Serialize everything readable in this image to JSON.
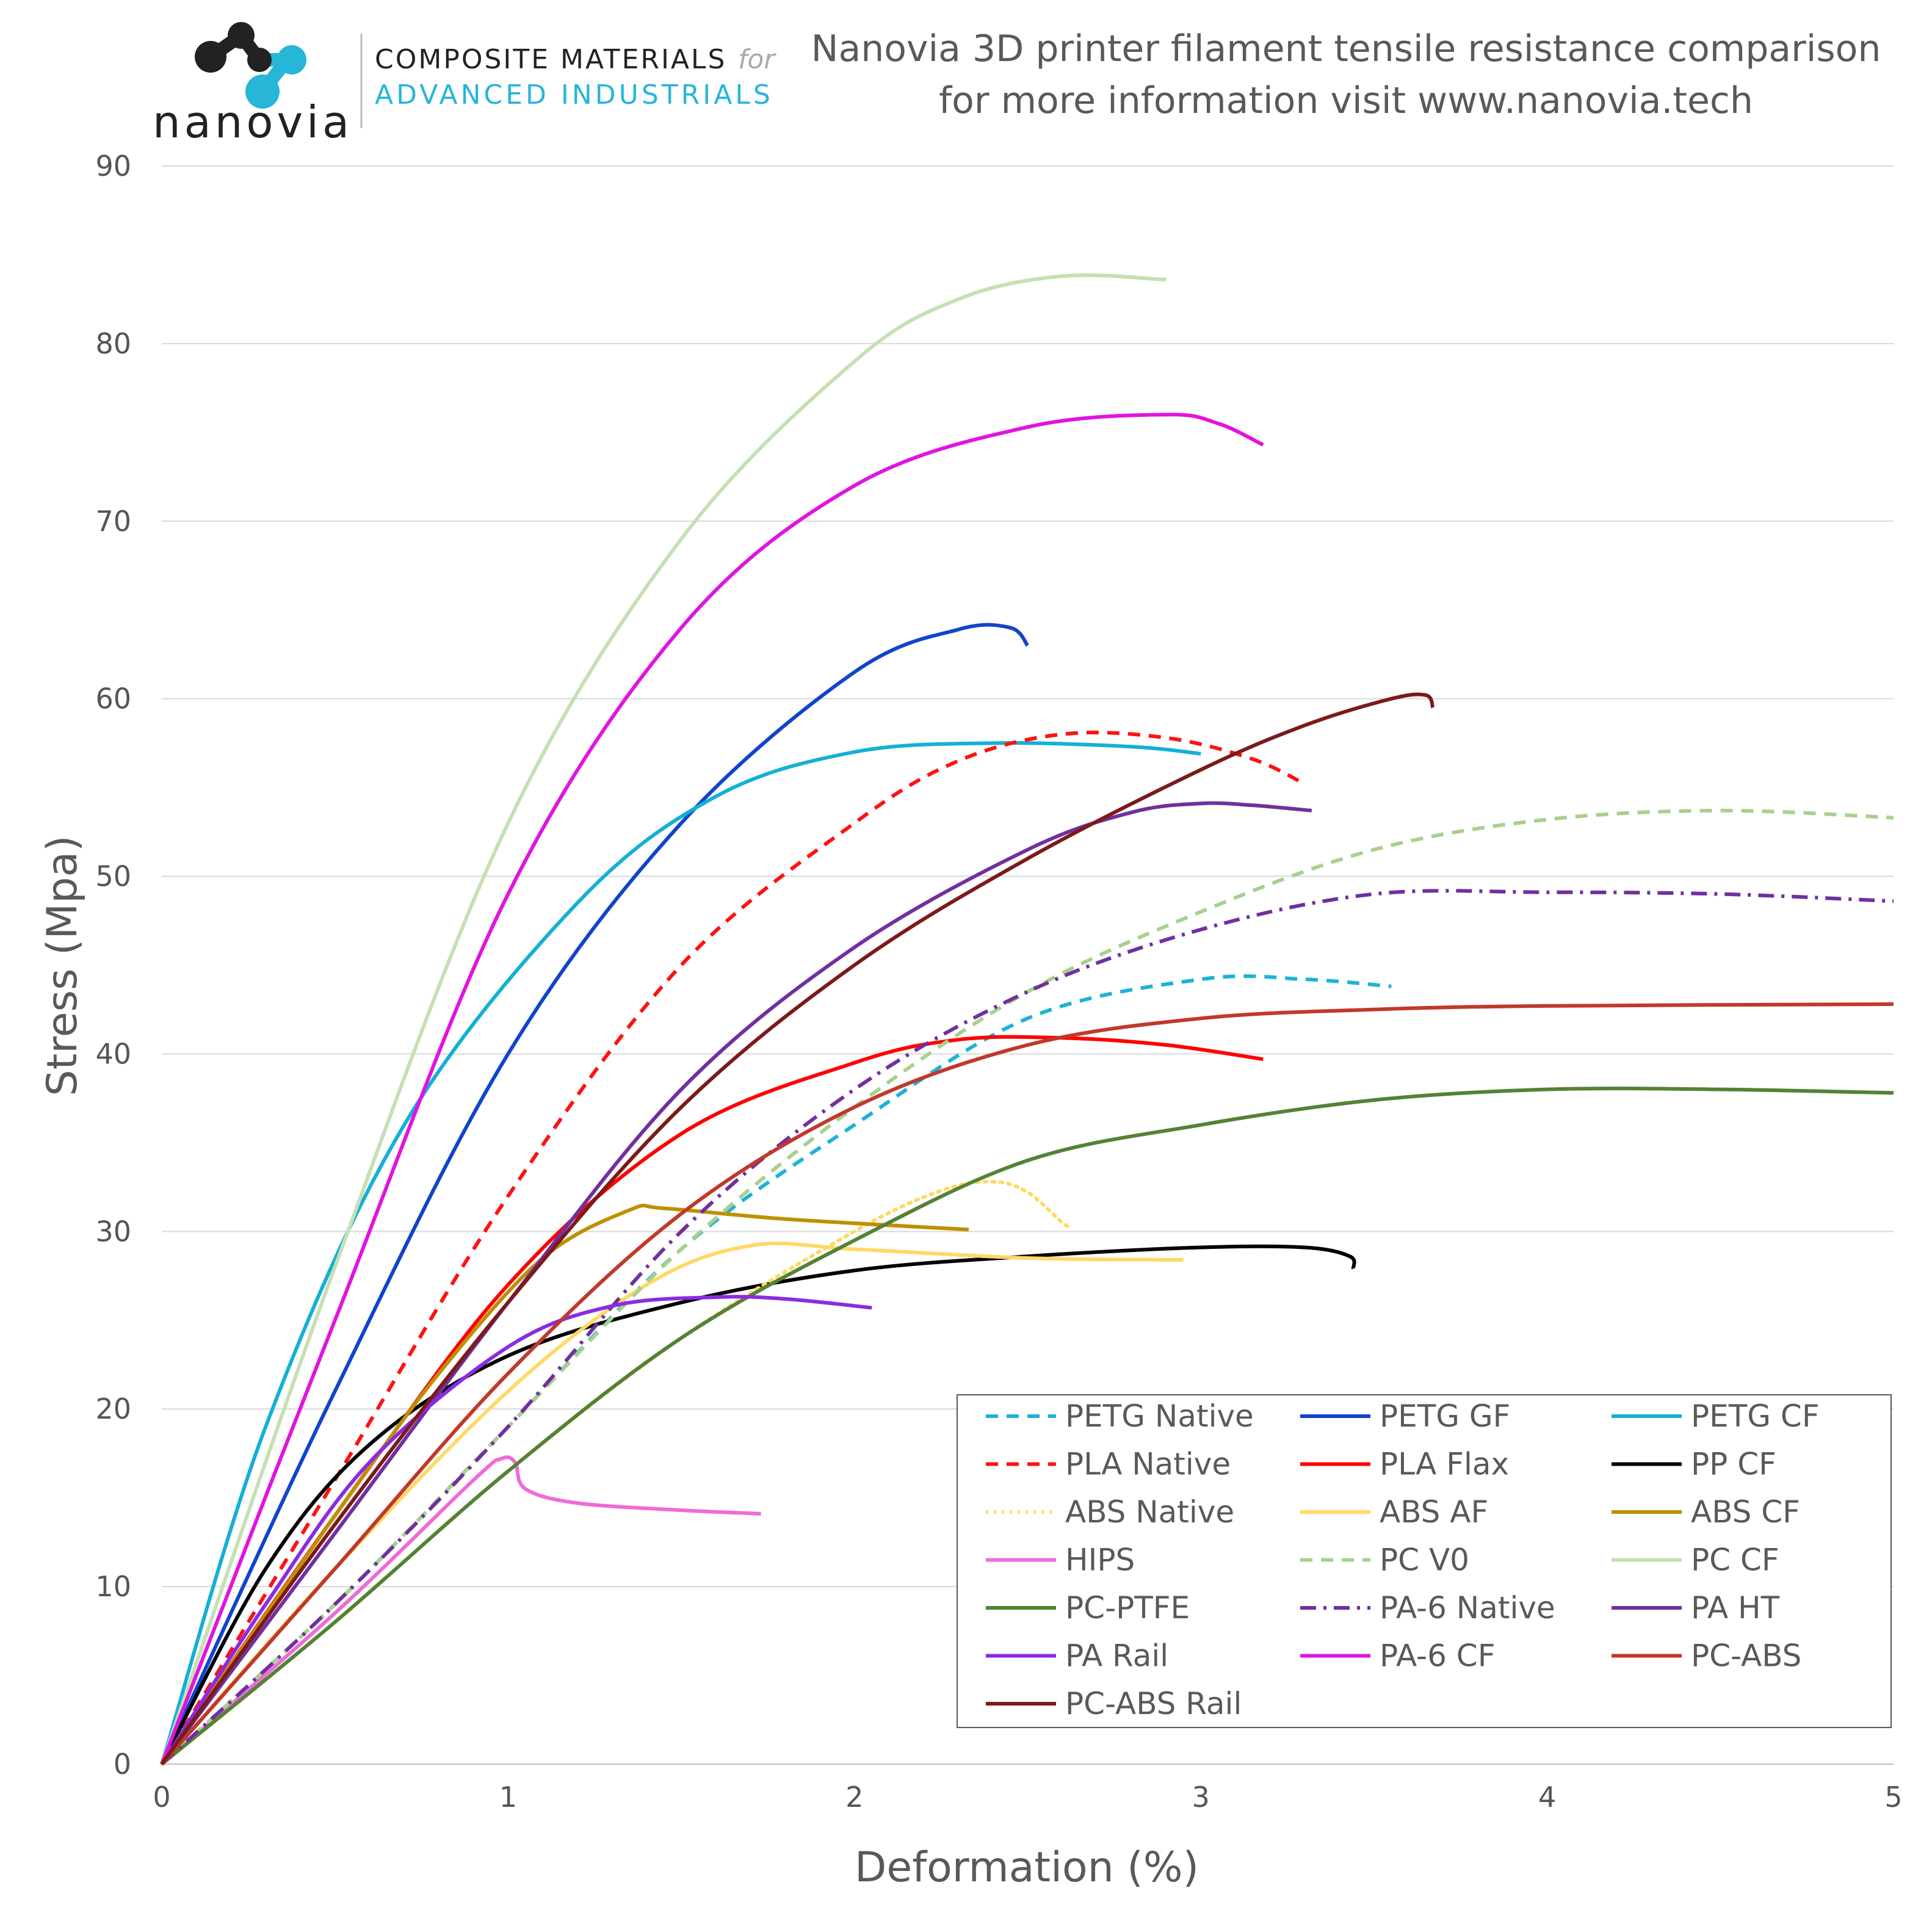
{
  "brand": {
    "name": "nanovia",
    "tagline_line1": "COMPOSITE MATERIALS",
    "tagline_for": "for",
    "tagline_line2": "ADVANCED INDUSTRIALS",
    "accent_color": "#27b5d8",
    "dark_color": "#222222"
  },
  "chart_data": {
    "type": "line",
    "title": "Nanovia 3D printer filament  tensile resistance comparison",
    "subtitle": "for more information visit www.nanovia.tech",
    "xlabel": "Deformation (%)",
    "ylabel": "Stress  (Mpa)",
    "xlim": [
      0,
      5
    ],
    "ylim": [
      0,
      90
    ],
    "xticks": [
      0,
      1,
      2,
      3,
      4,
      5
    ],
    "yticks": [
      0,
      10,
      20,
      30,
      40,
      50,
      60,
      70,
      80,
      90
    ],
    "grid": "horizontal",
    "legend_position": "bottom-right",
    "series": [
      {
        "name": "PETG Native",
        "color": "#1fb2d6",
        "dash": "dashed",
        "points": [
          [
            0,
            0
          ],
          [
            0.5,
            9
          ],
          [
            1,
            19
          ],
          [
            1.5,
            29
          ],
          [
            2,
            36
          ],
          [
            2.5,
            42
          ],
          [
            3,
            44.2
          ],
          [
            3.3,
            44.2
          ],
          [
            3.55,
            43.8
          ]
        ]
      },
      {
        "name": "PETG GF",
        "color": "#1144cc",
        "dash": "solid",
        "points": [
          [
            0,
            0
          ],
          [
            0.5,
            21
          ],
          [
            1,
            40
          ],
          [
            1.5,
            53
          ],
          [
            2,
            61.5
          ],
          [
            2.3,
            63.9
          ],
          [
            2.45,
            64
          ],
          [
            2.5,
            63
          ]
        ]
      },
      {
        "name": "PETG CF",
        "color": "#14b0d6",
        "dash": "solid",
        "points": [
          [
            0,
            0
          ],
          [
            0.3,
            19
          ],
          [
            0.7,
            36
          ],
          [
            1.2,
            48.5
          ],
          [
            1.6,
            54.5
          ],
          [
            2,
            57
          ],
          [
            2.4,
            57.5
          ],
          [
            2.8,
            57.3
          ],
          [
            3,
            56.9
          ]
        ]
      },
      {
        "name": "PLA Native",
        "color": "#ff1111",
        "dash": "dashed",
        "points": [
          [
            0,
            0
          ],
          [
            0.5,
            16
          ],
          [
            1,
            32
          ],
          [
            1.5,
            45
          ],
          [
            2,
            53
          ],
          [
            2.3,
            56.5
          ],
          [
            2.6,
            58
          ],
          [
            2.9,
            57.8
          ],
          [
            3.15,
            56.6
          ],
          [
            3.3,
            55.2
          ]
        ]
      },
      {
        "name": "PLA Flax",
        "color": "#ff0000",
        "dash": "solid",
        "points": [
          [
            0,
            0
          ],
          [
            0.5,
            14
          ],
          [
            1,
            27
          ],
          [
            1.5,
            35.5
          ],
          [
            2,
            39.5
          ],
          [
            2.3,
            40.8
          ],
          [
            2.6,
            40.9
          ],
          [
            2.9,
            40.5
          ],
          [
            3.18,
            39.7
          ]
        ]
      },
      {
        "name": "PP CF",
        "color": "#000000",
        "dash": "solid",
        "points": [
          [
            0,
            0
          ],
          [
            0.3,
            11
          ],
          [
            0.6,
            18
          ],
          [
            1,
            23
          ],
          [
            1.5,
            26
          ],
          [
            2,
            27.8
          ],
          [
            2.5,
            28.6
          ],
          [
            3,
            29.1
          ],
          [
            3.3,
            29.1
          ],
          [
            3.43,
            28.6
          ],
          [
            3.44,
            27.9
          ]
        ]
      },
      {
        "name": "ABS Native",
        "color": "#ffd966",
        "dash": "dotted",
        "points": [
          [
            0,
            0
          ],
          [
            0.5,
            8
          ],
          [
            1,
            16.5
          ],
          [
            1.5,
            24
          ],
          [
            2,
            30
          ],
          [
            2.25,
            32.3
          ],
          [
            2.4,
            32.8
          ],
          [
            2.5,
            32.2
          ],
          [
            2.6,
            30.5
          ],
          [
            2.62,
            30.3
          ]
        ]
      },
      {
        "name": "ABS AF",
        "color": "#ffd966",
        "dash": "solid",
        "points": [
          [
            0,
            0
          ],
          [
            0.5,
            11
          ],
          [
            1,
            21
          ],
          [
            1.4,
            27
          ],
          [
            1.7,
            29.2
          ],
          [
            2,
            29
          ],
          [
            2.5,
            28.5
          ],
          [
            2.95,
            28.4
          ]
        ]
      },
      {
        "name": "ABS CF",
        "color": "#bf8f00",
        "dash": "solid",
        "points": [
          [
            0,
            0
          ],
          [
            0.5,
            14
          ],
          [
            0.8,
            22
          ],
          [
            1.1,
            28.5
          ],
          [
            1.35,
            31.2
          ],
          [
            1.45,
            31.3
          ],
          [
            1.8,
            30.7
          ],
          [
            2.33,
            30.1
          ]
        ]
      },
      {
        "name": "HIPS",
        "color": "#f06ad8",
        "dash": "solid",
        "points": [
          [
            0,
            0
          ],
          [
            0.5,
            8.5
          ],
          [
            0.9,
            16
          ],
          [
            0.98,
            17.2
          ],
          [
            1.02,
            17
          ],
          [
            1.05,
            15.5
          ],
          [
            1.2,
            14.7
          ],
          [
            1.5,
            14.3
          ],
          [
            1.73,
            14.1
          ]
        ]
      },
      {
        "name": "PC V0",
        "color": "#a8d08d",
        "dash": "dashed",
        "points": [
          [
            0,
            0
          ],
          [
            0.5,
            9
          ],
          [
            1,
            19
          ],
          [
            1.5,
            29
          ],
          [
            2,
            37
          ],
          [
            2.5,
            43.5
          ],
          [
            3,
            48
          ],
          [
            3.5,
            51.5
          ],
          [
            4,
            53.2
          ],
          [
            4.5,
            53.7
          ],
          [
            5,
            53.3
          ]
        ]
      },
      {
        "name": "PC CF",
        "color": "#c5e0b4",
        "dash": "solid",
        "points": [
          [
            0,
            0
          ],
          [
            0.5,
            28
          ],
          [
            1,
            53
          ],
          [
            1.5,
            69
          ],
          [
            2,
            79
          ],
          [
            2.3,
            82.5
          ],
          [
            2.6,
            83.8
          ],
          [
            2.9,
            83.6
          ]
        ]
      },
      {
        "name": "PC-PTFE",
        "color": "#548235",
        "dash": "solid",
        "points": [
          [
            0,
            0
          ],
          [
            0.5,
            8
          ],
          [
            1,
            16.5
          ],
          [
            1.5,
            24
          ],
          [
            2,
            29.5
          ],
          [
            2.5,
            34
          ],
          [
            3,
            36
          ],
          [
            3.5,
            37.4
          ],
          [
            4,
            38
          ],
          [
            4.5,
            38
          ],
          [
            5,
            37.8
          ]
        ]
      },
      {
        "name": "PA-6 Native",
        "color": "#7030a0",
        "dash": "dashdot",
        "points": [
          [
            0,
            0
          ],
          [
            0.5,
            9
          ],
          [
            1,
            19
          ],
          [
            1.5,
            30
          ],
          [
            2,
            38
          ],
          [
            2.5,
            43.5
          ],
          [
            3,
            47
          ],
          [
            3.5,
            49
          ],
          [
            4,
            49.1
          ],
          [
            4.5,
            49
          ],
          [
            5,
            48.6
          ]
        ]
      },
      {
        "name": "PA HT",
        "color": "#7030a0",
        "dash": "solid",
        "points": [
          [
            0,
            0
          ],
          [
            0.5,
            13
          ],
          [
            1,
            26
          ],
          [
            1.5,
            38
          ],
          [
            2,
            46
          ],
          [
            2.5,
            51.5
          ],
          [
            2.8,
            53.6
          ],
          [
            3,
            54.1
          ],
          [
            3.15,
            54
          ],
          [
            3.32,
            53.7
          ]
        ]
      },
      {
        "name": "PA Rail",
        "color": "#8b2be2",
        "dash": "solid",
        "points": [
          [
            0,
            0
          ],
          [
            0.3,
            9
          ],
          [
            0.6,
            17
          ],
          [
            1,
            23.5
          ],
          [
            1.3,
            25.8
          ],
          [
            1.6,
            26.3
          ],
          [
            1.8,
            26.2
          ],
          [
            2.05,
            25.7
          ]
        ]
      },
      {
        "name": "PA-6 CF",
        "color": "#e014e0",
        "dash": "solid",
        "points": [
          [
            0,
            0
          ],
          [
            0.5,
            25
          ],
          [
            1,
            49
          ],
          [
            1.5,
            64
          ],
          [
            2,
            72
          ],
          [
            2.5,
            75.3
          ],
          [
            2.9,
            76
          ],
          [
            3.05,
            75.5
          ],
          [
            3.18,
            74.3
          ]
        ]
      },
      {
        "name": "PC-ABS",
        "color": "#c0392b",
        "dash": "solid",
        "points": [
          [
            0,
            0
          ],
          [
            0.5,
            11
          ],
          [
            1,
            22
          ],
          [
            1.5,
            31
          ],
          [
            2,
            37
          ],
          [
            2.5,
            40.5
          ],
          [
            3,
            42
          ],
          [
            3.5,
            42.5
          ],
          [
            4,
            42.7
          ],
          [
            5,
            42.8
          ]
        ]
      },
      {
        "name": "PC-ABS Rail",
        "color": "#7b1a1a",
        "dash": "solid",
        "points": [
          [
            0,
            0
          ],
          [
            0.5,
            13.5
          ],
          [
            1,
            26
          ],
          [
            1.5,
            37
          ],
          [
            2,
            45
          ],
          [
            2.5,
            51
          ],
          [
            3,
            56
          ],
          [
            3.3,
            58.5
          ],
          [
            3.55,
            60
          ],
          [
            3.65,
            60.2
          ],
          [
            3.67,
            59.5
          ]
        ]
      }
    ]
  }
}
